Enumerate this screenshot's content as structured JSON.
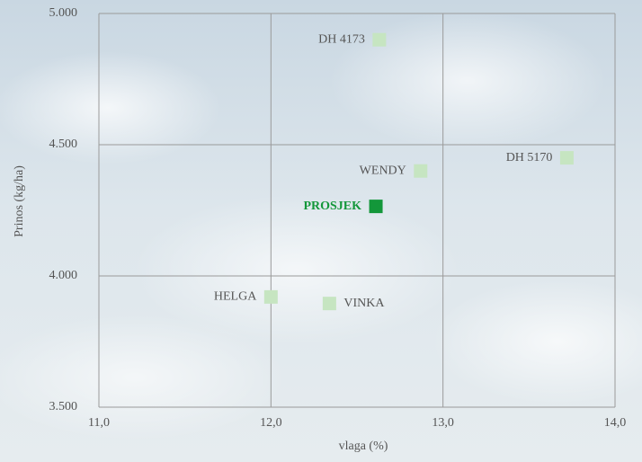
{
  "chart_data": {
    "type": "scatter",
    "x_label": "vlaga (%)",
    "y_label": "Prinos (kg/ha)",
    "point_labels": [
      "DH 4173",
      "DH 5170",
      "WENDY",
      "PROSJEK",
      "HELGA",
      "VINKA"
    ],
    "x": [
      12.63,
      13.72,
      12.87,
      12.61,
      12.0,
      12.34
    ],
    "values": [
      4900,
      4450,
      4400,
      4265,
      3920,
      3895
    ],
    "color": "#c6e5c1",
    "colors": [
      "#c6e5c1",
      "#c6e5c1",
      "#c6e5c1",
      "#13973a",
      "#c6e5c1",
      "#c6e5c1"
    ],
    "xlim": [
      11,
      14
    ],
    "ylim": [
      3500,
      5000
    ],
    "xticks": [
      {
        "value": 11,
        "label": "11,0"
      },
      {
        "value": 12,
        "label": "12,0"
      },
      {
        "value": 13,
        "label": "13,0"
      },
      {
        "value": 14,
        "label": "14,0"
      }
    ],
    "yticks": [
      {
        "value": 3500,
        "label": "3.500"
      },
      {
        "value": 4000,
        "label": "4.000"
      },
      {
        "value": 4500,
        "label": "4.500"
      },
      {
        "value": 5000,
        "label": "5.000"
      }
    ],
    "grid": true
  }
}
